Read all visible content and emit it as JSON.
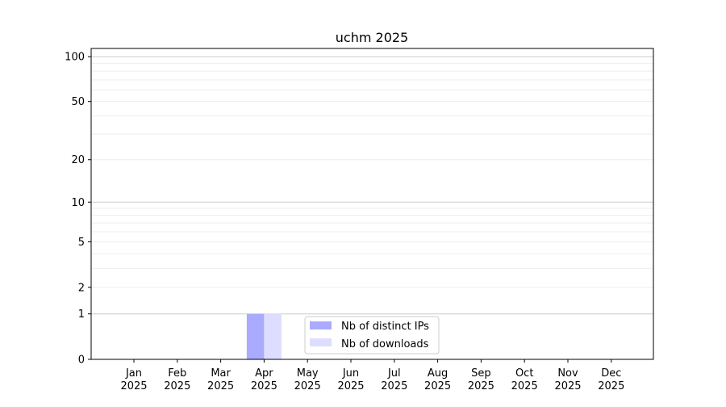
{
  "chart_data": {
    "type": "bar",
    "title": "uchm 2025",
    "xlabel": "",
    "ylabel": "",
    "y_scale": "log(1+y)",
    "ylim": [
      0,
      113
    ],
    "y_ticks": [
      0,
      1,
      2,
      5,
      10,
      20,
      50,
      100
    ],
    "grid": "horizontal",
    "categories": [
      "Jan\n2025",
      "Feb\n2025",
      "Mar\n2025",
      "Apr\n2025",
      "May\n2025",
      "Jun\n2025",
      "Jul\n2025",
      "Aug\n2025",
      "Sep\n2025",
      "Oct\n2025",
      "Nov\n2025",
      "Dec\n2025"
    ],
    "series": [
      {
        "name": "Nb of distinct IPs",
        "color": "#aaaaff",
        "values": [
          0,
          0,
          0,
          1,
          0,
          0,
          0,
          0,
          0,
          0,
          0,
          0
        ]
      },
      {
        "name": "Nb of downloads",
        "color": "#ddddff",
        "values": [
          0,
          0,
          0,
          1,
          0,
          0,
          0,
          0,
          0,
          0,
          0,
          0
        ]
      }
    ],
    "legend_position": "lower-center"
  }
}
